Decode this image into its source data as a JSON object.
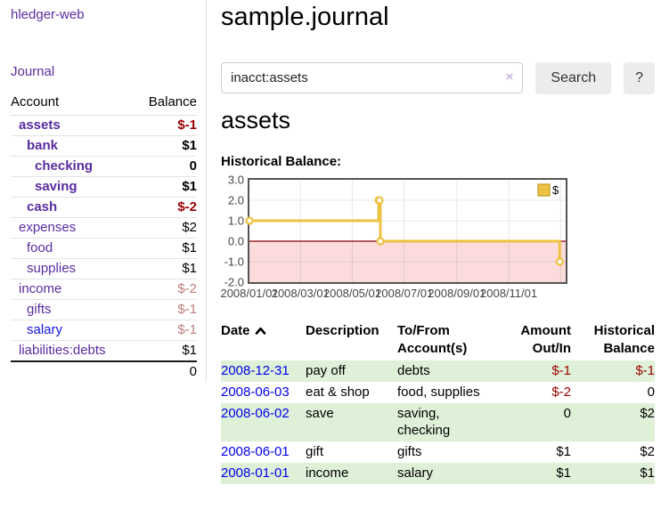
{
  "sidebar": {
    "app_title": "hledger-web",
    "journal_link": "Journal",
    "table_headers": {
      "account": "Account",
      "balance": "Balance"
    },
    "accounts": [
      {
        "name": "assets",
        "depth": 1,
        "bold": true,
        "name_color": "purple",
        "balance": "$-1",
        "balance_style": "negative"
      },
      {
        "name": "bank",
        "depth": 2,
        "bold": true,
        "name_color": "purple",
        "balance": "$1",
        "balance_style": "normal"
      },
      {
        "name": "checking",
        "depth": 3,
        "bold": true,
        "name_color": "purple",
        "balance": "0",
        "balance_style": "normal"
      },
      {
        "name": "saving",
        "depth": 3,
        "bold": true,
        "name_color": "purple",
        "balance": "$1",
        "balance_style": "normal"
      },
      {
        "name": "cash",
        "depth": 2,
        "bold": true,
        "name_color": "purple",
        "balance": "$-2",
        "balance_style": "negative"
      },
      {
        "name": "expenses",
        "depth": 1,
        "bold": false,
        "name_color": "purple",
        "balance": "$2",
        "balance_style": "normal"
      },
      {
        "name": "food",
        "depth": 2,
        "bold": false,
        "name_color": "purple",
        "balance": "$1",
        "balance_style": "normal"
      },
      {
        "name": "supplies",
        "depth": 2,
        "bold": false,
        "name_color": "purple",
        "balance": "$1",
        "balance_style": "normal"
      },
      {
        "name": "income",
        "depth": 1,
        "bold": false,
        "name_color": "purple",
        "balance": "$-2",
        "balance_style": "negative-faded"
      },
      {
        "name": "gifts",
        "depth": 2,
        "bold": false,
        "name_color": "purple",
        "balance": "$-1",
        "balance_style": "negative-faded"
      },
      {
        "name": "salary",
        "depth": 2,
        "bold": false,
        "name_color": "blue",
        "balance": "$-1",
        "balance_style": "negative-faded"
      },
      {
        "name": "liabilities:debts",
        "depth": 1,
        "bold": false,
        "name_color": "purple",
        "balance": "$1",
        "balance_style": "normal"
      }
    ],
    "total": "0"
  },
  "main": {
    "title": "sample.journal",
    "search": {
      "value": "inacct:assets",
      "clear_icon": "×",
      "button_label": "Search",
      "help_label": "?"
    },
    "account_heading": "assets",
    "chart_title": "Historical Balance:"
  },
  "chart_data": {
    "type": "line",
    "step": true,
    "title": "Historical Balance:",
    "series": [
      {
        "name": "$",
        "color": "#edc240",
        "points": [
          [
            "2008-01-01",
            1
          ],
          [
            "2008-06-01",
            2
          ],
          [
            "2008-06-02",
            2
          ],
          [
            "2008-06-03",
            0
          ],
          [
            "2008-12-31",
            -1
          ]
        ]
      }
    ],
    "x_ticks": [
      "2008/01/01",
      "2008/03/01",
      "2008/05/01",
      "2008/07/01",
      "2008/09/01",
      "2008/11/01"
    ],
    "y_ticks": [
      3,
      2,
      1,
      0,
      -1,
      -2
    ],
    "y_tick_labels": [
      "3.0",
      "2.0",
      "1.0",
      "0.0",
      "-1.0",
      "-2.0"
    ],
    "ylim": [
      -2,
      3
    ],
    "x_range": [
      "2008-01-01",
      "2009-01-07"
    ],
    "grid": true,
    "legend_position": "top-right",
    "legend_label": "$",
    "negative_region_color": "#fbdbdb",
    "zero_line_color": "#8b0000",
    "line_color": "#edc240"
  },
  "register": {
    "columns": [
      {
        "label": "Date",
        "align": "left",
        "sorted_asc": true
      },
      {
        "label": "Description",
        "align": "left"
      },
      {
        "label": "To/From Account(s)",
        "align": "left"
      },
      {
        "label": "Amount Out/In",
        "align": "right"
      },
      {
        "label": "Historical Balance",
        "align": "right"
      }
    ],
    "rows": [
      {
        "date": "2008-12-31",
        "description": "pay off",
        "accounts": "debts",
        "amount": "$-1",
        "amount_negative": true,
        "balance": "$-1",
        "balance_negative": true
      },
      {
        "date": "2008-06-03",
        "description": "eat & shop",
        "accounts": "food, supplies",
        "amount": "$-2",
        "amount_negative": true,
        "balance": "0",
        "balance_negative": false
      },
      {
        "date": "2008-06-02",
        "description": "save",
        "accounts": "saving, checking",
        "amount": "0",
        "amount_negative": false,
        "balance": "$2",
        "balance_negative": false
      },
      {
        "date": "2008-06-01",
        "description": "gift",
        "accounts": "gifts",
        "amount": "$1",
        "amount_negative": false,
        "balance": "$2",
        "balance_negative": false
      },
      {
        "date": "2008-01-01",
        "description": "income",
        "accounts": "salary",
        "amount": "$1",
        "amount_negative": false,
        "balance": "$1",
        "balance_negative": false
      }
    ]
  },
  "colors": {
    "link_purple": "#5a2ca0",
    "link_blue": "#0000ee",
    "negative": "#990000",
    "negative_faded": "#bd7e7e",
    "row_highlight_green": "#dff0d8",
    "chart_line_gold": "#edc240"
  }
}
